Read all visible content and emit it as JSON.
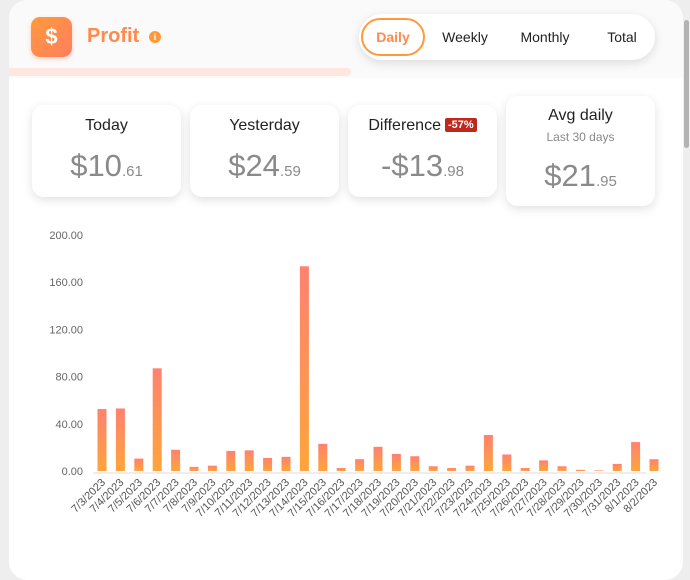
{
  "header": {
    "logo_symbol": "$",
    "title": "Profit",
    "info_symbol": "i",
    "tabs": [
      {
        "label": "Daily",
        "active": true
      },
      {
        "label": "Weekly",
        "active": false
      },
      {
        "label": "Monthly",
        "active": false
      },
      {
        "label": "Total",
        "active": false
      }
    ]
  },
  "stats": {
    "today": {
      "label": "Today",
      "main": "$10",
      "cents": ".61"
    },
    "yesterday": {
      "label": "Yesterday",
      "main": "$24",
      "cents": ".59"
    },
    "difference": {
      "label": "Difference",
      "badge": "-57%",
      "main": "-$13",
      "cents": ".98"
    },
    "avg": {
      "label": "Avg daily",
      "sub": "Last 30 days",
      "main": "$21",
      "cents": ".95"
    }
  },
  "colors": {
    "accent": "#ff8a4c",
    "bar_top": "#ff8170",
    "bar_bottom": "#ffa53a",
    "badge": "#c0281e"
  },
  "icons": {
    "logo": "dollar-icon",
    "info": "info-icon"
  },
  "chart_data": {
    "type": "bar",
    "categories": [
      "7/3/2023",
      "7/4/2023",
      "7/5/2023",
      "7/6/2023",
      "7/7/2023",
      "7/8/2023",
      "7/9/2023",
      "7/10/2023",
      "7/11/2023",
      "7/12/2023",
      "7/13/2023",
      "7/14/2023",
      "7/15/2023",
      "7/16/2023",
      "7/17/2023",
      "7/18/2023",
      "7/19/2023",
      "7/20/2023",
      "7/21/2023",
      "7/22/2023",
      "7/23/2023",
      "7/24/2023",
      "7/25/2023",
      "7/26/2023",
      "7/27/2023",
      "7/28/2023",
      "7/29/2023",
      "7/30/2023",
      "7/31/2023",
      "8/1/2023",
      "8/2/2023"
    ],
    "values": [
      52.5,
      53,
      10.5,
      87,
      18,
      3.5,
      4.5,
      17,
      17.5,
      11,
      12,
      173.5,
      23,
      2.5,
      10,
      20.5,
      14.5,
      12.5,
      4,
      2.5,
      4.5,
      30.5,
      14,
      2.5,
      9,
      4,
      1,
      0.5,
      6,
      24.5,
      10
    ],
    "yticks": [
      "0.00",
      "40.00",
      "80.00",
      "120.00",
      "160.00",
      "200.00"
    ],
    "ylim": [
      0,
      200
    ],
    "grid": false
  }
}
